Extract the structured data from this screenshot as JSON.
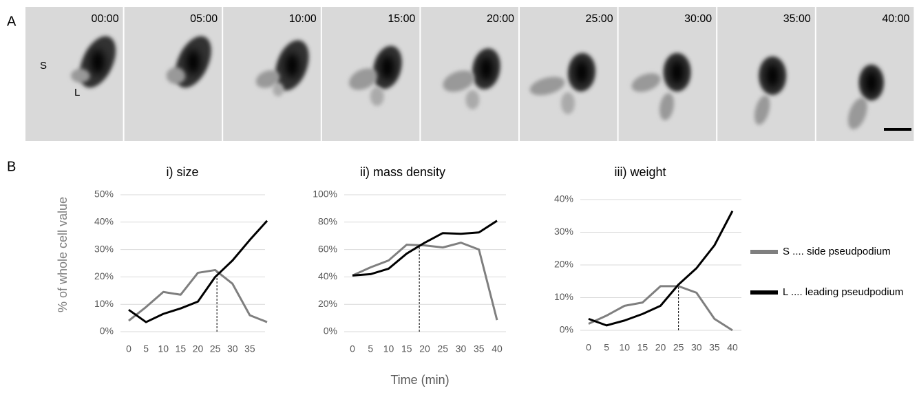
{
  "panel_labels": [
    "A",
    "B"
  ],
  "frames": [
    "00:00",
    "05:00",
    "10:00",
    "15:00",
    "20:00",
    "25:00",
    "30:00",
    "35:00",
    "40:00"
  ],
  "cell_labels": [
    "S",
    "L"
  ],
  "y_label": "% of whole cell value",
  "x_label": "Time (min)",
  "chart_data": [
    {
      "type": "line",
      "title": "i) size",
      "x": [
        0,
        5,
        10,
        15,
        20,
        25,
        30,
        35,
        40
      ],
      "xlim": [
        0,
        40
      ],
      "xticks": [
        0,
        5,
        10,
        15,
        20,
        25,
        30,
        35
      ],
      "ylim": [
        0,
        50
      ],
      "yticks": [
        {
          "value": 0,
          "label": "0%"
        },
        {
          "value": 10,
          "label": "10%"
        },
        {
          "value": 20,
          "label": "20%"
        },
        {
          "value": 30,
          "label": "30%"
        },
        {
          "value": 40,
          "label": "40%"
        },
        {
          "value": 50,
          "label": "50%"
        }
      ],
      "grid": true,
      "crossover_x": 25.5,
      "series": [
        {
          "name": "S .... side pseudpodium",
          "color": "#7f7f7f",
          "values": [
            4,
            9,
            14.5,
            13.5,
            21.5,
            22.5,
            17.5,
            6,
            3.5
          ]
        },
        {
          "name": "L .... leading pseudpodium",
          "color": "#000000",
          "values": [
            8,
            3.5,
            6.5,
            8.5,
            11,
            20,
            26,
            33.5,
            40.5
          ]
        }
      ]
    },
    {
      "type": "line",
      "title": "ii) mass density",
      "x": [
        0,
        5,
        10,
        15,
        20,
        25,
        30,
        35,
        40
      ],
      "xlim": [
        0,
        40
      ],
      "xticks": [
        0,
        5,
        10,
        15,
        20,
        25,
        30,
        35,
        40
      ],
      "ylim": [
        0,
        100
      ],
      "yticks": [
        {
          "value": 0,
          "label": "0%"
        },
        {
          "value": 20,
          "label": "20%"
        },
        {
          "value": 40,
          "label": "40%"
        },
        {
          "value": 60,
          "label": "60%"
        },
        {
          "value": 80,
          "label": "80%"
        },
        {
          "value": 100,
          "label": "100%"
        }
      ],
      "grid": true,
      "crossover_x": 18.5,
      "series": [
        {
          "name": "S .... side pseudpodium",
          "color": "#7f7f7f",
          "values": [
            41,
            47,
            52,
            63.5,
            63,
            61.5,
            65,
            60,
            8.5
          ]
        },
        {
          "name": "L .... leading pseudpodium",
          "color": "#000000",
          "values": [
            41,
            42,
            46,
            57,
            65,
            72,
            71.5,
            72.5,
            81
          ]
        }
      ]
    },
    {
      "type": "line",
      "title": "iii) weight",
      "x": [
        0,
        5,
        10,
        15,
        20,
        25,
        30,
        35,
        40
      ],
      "xlim": [
        0,
        40
      ],
      "xticks": [
        0,
        5,
        10,
        15,
        20,
        25,
        30,
        35,
        40
      ],
      "ylim": [
        0,
        40
      ],
      "yticks": [
        {
          "value": 0,
          "label": "0%"
        },
        {
          "value": 10,
          "label": "10%"
        },
        {
          "value": 20,
          "label": "20%"
        },
        {
          "value": 30,
          "label": "30%"
        },
        {
          "value": 40,
          "label": "40%"
        }
      ],
      "grid": true,
      "crossover_x": 25,
      "series": [
        {
          "name": "S .... side pseudpodium",
          "color": "#7f7f7f",
          "values": [
            2,
            4.5,
            7.5,
            8.5,
            13.5,
            13.5,
            11.5,
            3.5,
            0
          ]
        },
        {
          "name": "L .... leading pseudpodium",
          "color": "#000000",
          "values": [
            3.5,
            1.5,
            3,
            5,
            7.5,
            14,
            19,
            26,
            36.5
          ]
        }
      ]
    }
  ]
}
